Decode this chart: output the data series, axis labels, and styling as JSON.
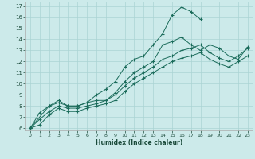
{
  "xlabel": "Humidex (Indice chaleur)",
  "bg_color": "#cceaea",
  "grid_color": "#aad4d4",
  "line_color": "#1a6b5a",
  "xlim": [
    -0.5,
    23.5
  ],
  "ylim": [
    5.8,
    17.4
  ],
  "xticks": [
    0,
    1,
    2,
    3,
    4,
    5,
    6,
    7,
    8,
    9,
    10,
    11,
    12,
    13,
    14,
    15,
    16,
    17,
    18,
    19,
    20,
    21,
    22,
    23
  ],
  "yticks": [
    6,
    7,
    8,
    9,
    10,
    11,
    12,
    13,
    14,
    15,
    16,
    17
  ],
  "series": [
    {
      "x": [
        0,
        1,
        2,
        3,
        4,
        5,
        6,
        7,
        8,
        9,
        10,
        11,
        12,
        13,
        14,
        15,
        16,
        17,
        18
      ],
      "y": [
        6.0,
        7.4,
        8.0,
        8.3,
        8.0,
        8.0,
        8.3,
        9.0,
        9.5,
        10.2,
        11.5,
        12.2,
        12.5,
        13.5,
        14.5,
        16.2,
        16.9,
        16.5,
        15.8
      ]
    },
    {
      "x": [
        0,
        2,
        3,
        4,
        5,
        6,
        7,
        8,
        9,
        10,
        11,
        12,
        13,
        14,
        15,
        16,
        17,
        18,
        19,
        20,
        21,
        22,
        23
      ],
      "y": [
        6.0,
        8.0,
        8.5,
        8.0,
        8.0,
        8.3,
        8.5,
        8.5,
        9.2,
        10.2,
        11.0,
        11.5,
        12.0,
        13.5,
        13.8,
        14.2,
        13.5,
        13.0,
        13.5,
        13.2,
        12.5,
        12.2,
        13.3
      ]
    },
    {
      "x": [
        0,
        1,
        2,
        3,
        4,
        5,
        6,
        7,
        8,
        9,
        10,
        11,
        12,
        13,
        14,
        15,
        16,
        17,
        18,
        19,
        20,
        21,
        22,
        23
      ],
      "y": [
        6.0,
        6.8,
        7.5,
        8.0,
        7.8,
        7.8,
        8.0,
        8.2,
        8.5,
        9.0,
        9.8,
        10.5,
        11.0,
        11.5,
        12.2,
        12.5,
        13.0,
        13.2,
        13.5,
        12.8,
        12.3,
        12.0,
        12.5,
        13.2
      ]
    },
    {
      "x": [
        0,
        1,
        2,
        3,
        4,
        5,
        6,
        7,
        8,
        9,
        10,
        11,
        12,
        13,
        14,
        15,
        16,
        17,
        18,
        19,
        20,
        21,
        22,
        23
      ],
      "y": [
        6.0,
        6.3,
        7.2,
        7.8,
        7.5,
        7.5,
        7.8,
        8.0,
        8.2,
        8.5,
        9.3,
        10.0,
        10.5,
        11.0,
        11.5,
        12.0,
        12.3,
        12.5,
        12.8,
        12.2,
        11.8,
        11.5,
        12.0,
        12.5
      ]
    }
  ]
}
